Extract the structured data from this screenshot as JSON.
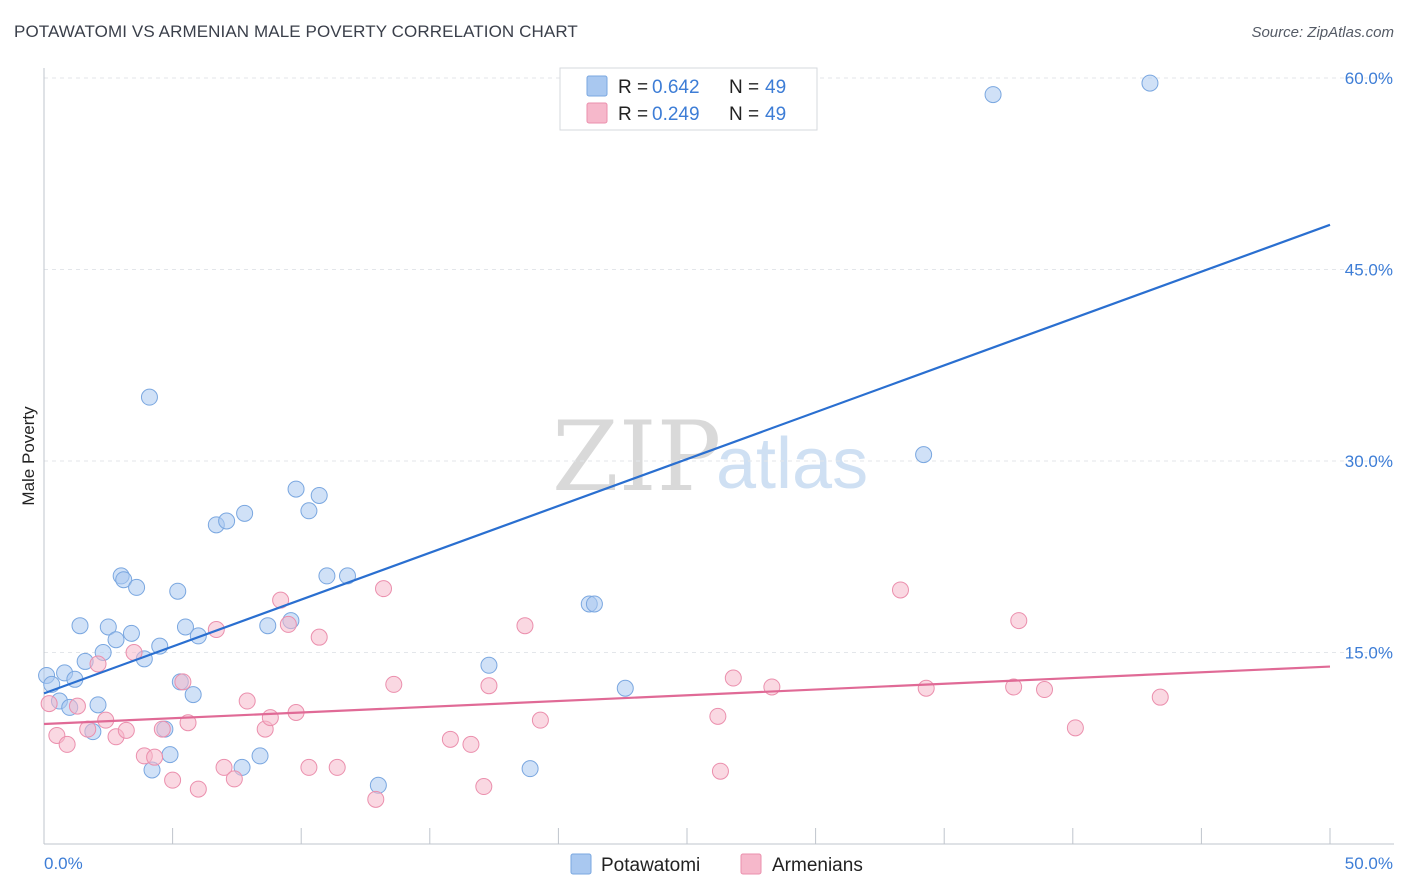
{
  "chart_data": {
    "type": "scatter",
    "title": "POTAWATOMI VS ARMENIAN MALE POVERTY CORRELATION CHART",
    "source": "Source: ZipAtlas.com",
    "xlabel": "",
    "ylabel": "Male Poverty",
    "xlim": [
      0,
      50
    ],
    "ylim": [
      0,
      60
    ],
    "x_tick_labels": [
      "0.0%",
      "50.0%"
    ],
    "y_ticks": [
      {
        "value": 15,
        "label": "15.0%"
      },
      {
        "value": 30,
        "label": "30.0%"
      },
      {
        "value": 45,
        "label": "45.0%"
      },
      {
        "value": 60,
        "label": "60.0%"
      }
    ],
    "grid": true,
    "watermark": {
      "part1": "ZIP",
      "part2": "atlas"
    },
    "legend_top": [
      {
        "r_label": "R =",
        "r_value": "0.642",
        "n_label": "N =",
        "n_value": "49",
        "color": "#a9c8f0"
      },
      {
        "r_label": "R =",
        "r_value": "0.249",
        "n_label": "N =",
        "n_value": "49",
        "color": "#f6b8cb"
      }
    ],
    "series": [
      {
        "name": "Potawatomi",
        "color": "#a9c8f0",
        "stroke": "#7aa7e0",
        "trend_color": "#2a6fd0",
        "trend": {
          "x0": 0,
          "y0": 11.8,
          "x1": 50,
          "y1": 48.5
        },
        "points": [
          [
            0.1,
            13.2
          ],
          [
            0.3,
            12.5
          ],
          [
            0.6,
            11.2
          ],
          [
            0.8,
            13.4
          ],
          [
            1.0,
            10.7
          ],
          [
            1.2,
            12.9
          ],
          [
            1.4,
            17.1
          ],
          [
            1.6,
            14.3
          ],
          [
            1.9,
            8.8
          ],
          [
            2.1,
            10.9
          ],
          [
            2.3,
            15.0
          ],
          [
            2.5,
            17.0
          ],
          [
            2.8,
            16.0
          ],
          [
            3.0,
            21.0
          ],
          [
            3.1,
            20.7
          ],
          [
            3.4,
            16.5
          ],
          [
            3.6,
            20.1
          ],
          [
            3.9,
            14.5
          ],
          [
            4.1,
            35.0
          ],
          [
            4.2,
            5.8
          ],
          [
            4.5,
            15.5
          ],
          [
            4.7,
            9.0
          ],
          [
            4.9,
            7.0
          ],
          [
            5.2,
            19.8
          ],
          [
            5.3,
            12.7
          ],
          [
            5.5,
            17.0
          ],
          [
            5.8,
            11.7
          ],
          [
            6.0,
            16.3
          ],
          [
            6.7,
            25.0
          ],
          [
            7.1,
            25.3
          ],
          [
            7.7,
            6.0
          ],
          [
            7.8,
            25.9
          ],
          [
            8.4,
            6.9
          ],
          [
            8.7,
            17.1
          ],
          [
            9.6,
            17.5
          ],
          [
            9.8,
            27.8
          ],
          [
            10.3,
            26.1
          ],
          [
            10.7,
            27.3
          ],
          [
            11.0,
            21.0
          ],
          [
            11.8,
            21.0
          ],
          [
            13.0,
            4.6
          ],
          [
            17.3,
            14.0
          ],
          [
            18.9,
            5.9
          ],
          [
            21.2,
            18.8
          ],
          [
            21.4,
            18.8
          ],
          [
            22.6,
            12.2
          ],
          [
            34.2,
            30.5
          ],
          [
            36.9,
            58.7
          ],
          [
            43.0,
            59.6
          ]
        ]
      },
      {
        "name": "Armenians",
        "color": "#f6b8cb",
        "stroke": "#eb8fad",
        "trend_color": "#e06a96",
        "trend": {
          "x0": 0,
          "y0": 9.4,
          "x1": 50,
          "y1": 13.9
        },
        "points": [
          [
            0.2,
            11.0
          ],
          [
            0.5,
            8.5
          ],
          [
            0.9,
            7.8
          ],
          [
            1.3,
            10.8
          ],
          [
            1.7,
            9.0
          ],
          [
            2.1,
            14.1
          ],
          [
            2.4,
            9.7
          ],
          [
            2.8,
            8.4
          ],
          [
            3.2,
            8.9
          ],
          [
            3.5,
            15.0
          ],
          [
            3.9,
            6.9
          ],
          [
            4.3,
            6.8
          ],
          [
            4.6,
            9.0
          ],
          [
            5.0,
            5.0
          ],
          [
            5.4,
            12.7
          ],
          [
            5.6,
            9.5
          ],
          [
            6.0,
            4.3
          ],
          [
            6.7,
            16.8
          ],
          [
            7.0,
            6.0
          ],
          [
            7.4,
            5.1
          ],
          [
            7.9,
            11.2
          ],
          [
            8.6,
            9.0
          ],
          [
            8.8,
            9.9
          ],
          [
            9.2,
            19.1
          ],
          [
            9.5,
            17.2
          ],
          [
            9.8,
            10.3
          ],
          [
            10.3,
            6.0
          ],
          [
            10.7,
            16.2
          ],
          [
            11.4,
            6.0
          ],
          [
            12.9,
            3.5
          ],
          [
            13.2,
            20.0
          ],
          [
            13.6,
            12.5
          ],
          [
            15.8,
            8.2
          ],
          [
            16.6,
            7.8
          ],
          [
            17.1,
            4.5
          ],
          [
            17.3,
            12.4
          ],
          [
            18.7,
            17.1
          ],
          [
            19.3,
            9.7
          ],
          [
            26.2,
            10.0
          ],
          [
            26.3,
            5.7
          ],
          [
            26.8,
            13.0
          ],
          [
            28.3,
            12.3
          ],
          [
            33.3,
            19.9
          ],
          [
            34.3,
            12.2
          ],
          [
            37.7,
            12.3
          ],
          [
            37.9,
            17.5
          ],
          [
            38.9,
            12.1
          ],
          [
            40.1,
            9.1
          ],
          [
            43.4,
            11.5
          ]
        ]
      }
    ]
  }
}
